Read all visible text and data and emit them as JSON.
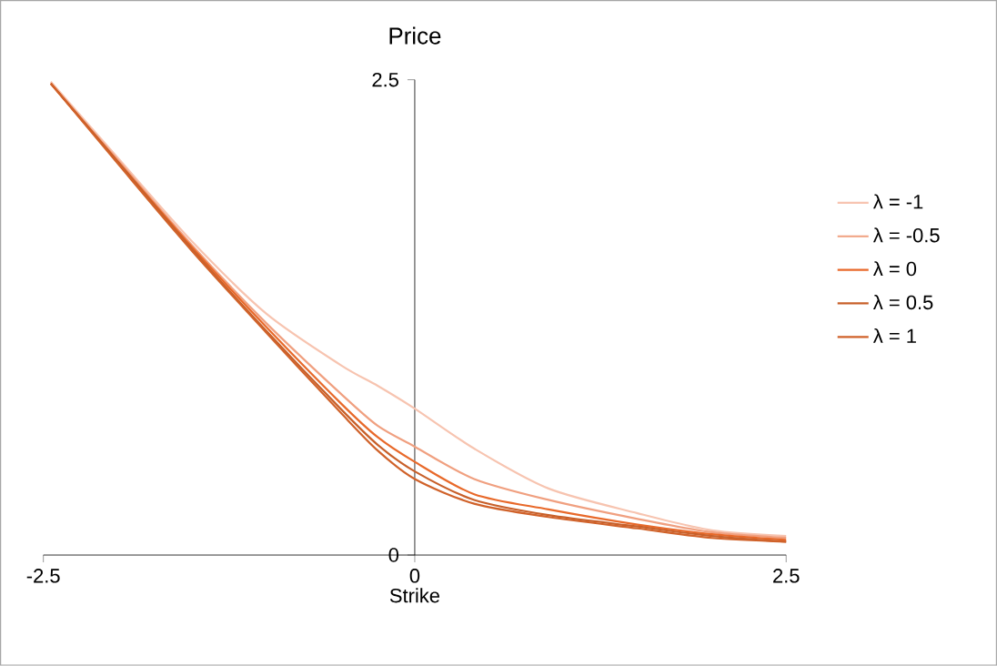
{
  "chart_data": {
    "type": "line",
    "title": "Price",
    "xlabel": "Strike",
    "x": [
      -2.45,
      -2,
      -1.5,
      -1,
      -0.5,
      -0.25,
      0,
      0.4,
      0.9,
      1.5,
      2,
      2.5
    ],
    "series": [
      {
        "name": "λ = -1",
        "color": "#f7c4b0",
        "values": [
          2.49,
          2.09,
          1.65,
          1.27,
          1.0,
          0.89,
          0.77,
          0.56,
          0.35,
          0.22,
          0.13,
          0.1
        ]
      },
      {
        "name": "λ = -0.5",
        "color": "#f0a080",
        "values": [
          2.48,
          2.08,
          1.63,
          1.22,
          0.85,
          0.68,
          0.57,
          0.4,
          0.29,
          0.19,
          0.12,
          0.09
        ]
      },
      {
        "name": "λ = 0",
        "color": "#e8692a",
        "values": [
          2.48,
          2.07,
          1.62,
          1.2,
          0.8,
          0.62,
          0.49,
          0.32,
          0.24,
          0.16,
          0.11,
          0.08
        ]
      },
      {
        "name": "λ = 0.5",
        "color": "#c8602a",
        "values": [
          2.48,
          2.07,
          1.61,
          1.18,
          0.77,
          0.58,
          0.44,
          0.29,
          0.21,
          0.15,
          0.1,
          0.07
        ]
      },
      {
        "name": "λ = 1",
        "color": "#d0622a",
        "values": [
          2.48,
          2.06,
          1.6,
          1.17,
          0.75,
          0.55,
          0.4,
          0.27,
          0.2,
          0.14,
          0.09,
          0.07
        ]
      }
    ],
    "xlim": [
      -2.5,
      2.5
    ],
    "ylim": [
      0,
      2.5
    ],
    "xticks": [
      -2.5,
      0,
      2.5
    ],
    "yticks": [
      0,
      2.5
    ],
    "legend": "right",
    "grid": false,
    "marker": "none",
    "line_style": "solid"
  }
}
